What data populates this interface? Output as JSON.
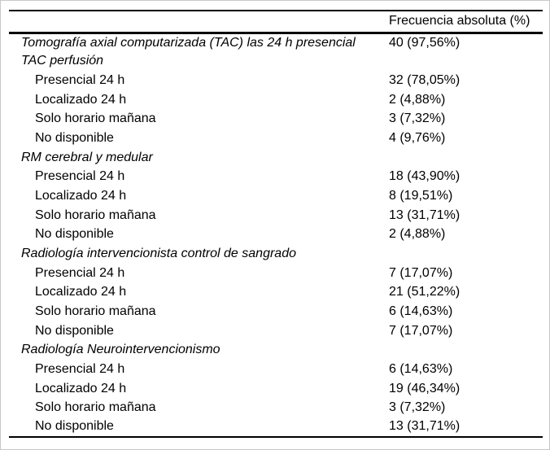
{
  "page": {
    "background": "#ffffff",
    "frame_color": "#c9c9c9",
    "rule_color": "#000000",
    "text_color": "#000000"
  },
  "table": {
    "header": {
      "label_column": "",
      "value_column": "Frecuencia absoluta (%)"
    },
    "rows": [
      {
        "label": "Tomografía axial computarizada (TAC) las 24 h presencial",
        "value": "40 (97,56%)",
        "style": "category"
      },
      {
        "label": "TAC perfusión",
        "value": "",
        "style": "category"
      },
      {
        "label": "Presencial 24 h",
        "value": "32 (78,05%)",
        "style": "sub"
      },
      {
        "label": "Localizado 24 h",
        "value": "2 (4,88%)",
        "style": "sub"
      },
      {
        "label": "Solo horario mañana",
        "value": "3 (7,32%)",
        "style": "sub"
      },
      {
        "label": "No disponible",
        "value": "4 (9,76%)",
        "style": "sub"
      },
      {
        "label": "RM cerebral y medular",
        "value": "",
        "style": "category"
      },
      {
        "label": "Presencial 24 h",
        "value": "18 (43,90%)",
        "style": "sub"
      },
      {
        "label": "Localizado 24 h",
        "value": "8 (19,51%)",
        "style": "sub"
      },
      {
        "label": "Solo horario mañana",
        "value": "13 (31,71%)",
        "style": "sub"
      },
      {
        "label": "No disponible",
        "value": "2 (4,88%)",
        "style": "sub"
      },
      {
        "label": "Radiología intervencionista control de sangrado",
        "value": "",
        "style": "category"
      },
      {
        "label": "Presencial 24 h",
        "value": "7 (17,07%)",
        "style": "sub"
      },
      {
        "label": "Localizado 24 h",
        "value": "21 (51,22%)",
        "style": "sub"
      },
      {
        "label": "Solo horario mañana",
        "value": "6 (14,63%)",
        "style": "sub"
      },
      {
        "label": "No disponible",
        "value": "7 (17,07%)",
        "style": "sub"
      },
      {
        "label": "Radiología Neurointervencionismo",
        "value": "",
        "style": "category"
      },
      {
        "label": "Presencial 24 h",
        "value": "6 (14,63%)",
        "style": "sub"
      },
      {
        "label": "Localizado 24 h",
        "value": "19 (46,34%)",
        "style": "sub"
      },
      {
        "label": "Solo horario mañana",
        "value": "3 (7,32%)",
        "style": "sub"
      },
      {
        "label": "No disponible",
        "value": "13 (31,71%)",
        "style": "sub"
      }
    ]
  }
}
